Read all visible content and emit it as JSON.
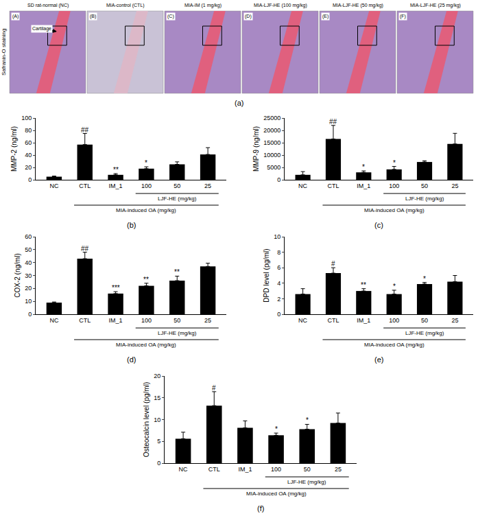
{
  "panel_a": {
    "label": "(a)",
    "side_label": "Safranin-O staining",
    "annotation": "Cartilage",
    "letters": [
      "(A)",
      "(B)",
      "(C)",
      "(D)",
      "(E)",
      "(F)"
    ],
    "headers": [
      "SD rat-normal (NC)",
      "MIA-control (CTL)",
      "MIA-IM (1 mg/kg)",
      "MIA-LJF-HE (100 mg/kg)",
      "MIA-LJF-HE (50 mg/kg)",
      "MIA-LJF-HE (25 mg/kg)"
    ]
  },
  "chart_data": [
    {
      "type": "bar",
      "panel": "(b)",
      "ylabel": "MMP-2 (ng/ml)",
      "categories": [
        "NC",
        "CTL",
        "IM_1",
        "100",
        "50",
        "25"
      ],
      "values": [
        5,
        57,
        8,
        18,
        25,
        41
      ],
      "errors": [
        1,
        18,
        2,
        3,
        4,
        11
      ],
      "significance": [
        null,
        "##",
        "**",
        "*",
        null,
        null
      ],
      "brackets": [
        {
          "label": "LJF-HE (mg/kg)",
          "span": [
            "100",
            "25"
          ]
        },
        {
          "label": "MIA-induced OA (mg/kg)",
          "span": [
            "CTL",
            "25"
          ]
        }
      ],
      "color": "#000000",
      "ylim": [
        0,
        100
      ],
      "yticks": [
        0,
        20,
        40,
        60,
        80,
        100
      ],
      "grid": false
    },
    {
      "type": "bar",
      "panel": "(c)",
      "ylabel": "MMP-9 (ng/ml)",
      "categories": [
        "NC",
        "CTL",
        "IM_1",
        "100",
        "50",
        "25"
      ],
      "values": [
        2000,
        16500,
        3000,
        4200,
        7200,
        14500
      ],
      "errors": [
        1300,
        5500,
        600,
        1200,
        500,
        4300
      ],
      "significance": [
        null,
        "##",
        "*",
        "*",
        null,
        null
      ],
      "brackets": [
        {
          "label": "LJF-HE (mg/kg)",
          "span": [
            "100",
            "25"
          ]
        },
        {
          "label": "MIA-induced OA (mg/kg)",
          "span": [
            "CTL",
            "25"
          ]
        }
      ],
      "color": "#000000",
      "ylim": [
        0,
        25000
      ],
      "yticks": [
        0,
        5000,
        10000,
        15000,
        20000,
        25000
      ],
      "grid": false
    },
    {
      "type": "bar",
      "panel": "(d)",
      "ylabel": "COX-2 (ng/ml)",
      "categories": [
        "NC",
        "CTL",
        "IM_1",
        "100",
        "50",
        "25"
      ],
      "values": [
        9,
        43,
        16,
        22,
        26,
        37
      ],
      "errors": [
        0.5,
        5,
        1.5,
        2,
        3.5,
        2.5
      ],
      "significance": [
        null,
        "##",
        "***",
        "**",
        "**",
        null
      ],
      "brackets": [
        {
          "label": "LJF-HE (mg/kg)",
          "span": [
            "100",
            "25"
          ]
        },
        {
          "label": "MIA-induced OA (mg/kg)",
          "span": [
            "CTL",
            "25"
          ]
        }
      ],
      "color": "#000000",
      "ylim": [
        0,
        60
      ],
      "yticks": [
        0,
        10,
        20,
        30,
        40,
        50,
        60
      ],
      "grid": false
    },
    {
      "type": "bar",
      "panel": "(e)",
      "ylabel": "DPD level (pg/ml)",
      "categories": [
        "NC",
        "CTL",
        "IM_1",
        "100",
        "50",
        "25"
      ],
      "values": [
        2.6,
        5.3,
        3.0,
        2.6,
        3.9,
        4.2
      ],
      "errors": [
        0.7,
        0.7,
        0.3,
        0.5,
        0.2,
        0.8
      ],
      "significance": [
        null,
        "#",
        "**",
        "*",
        "*",
        null
      ],
      "brackets": [
        {
          "label": "LJF-HE (mg/kg)",
          "span": [
            "100",
            "25"
          ]
        },
        {
          "label": "MIA-induced OA (mg/kg)",
          "span": [
            "CTL",
            "25"
          ]
        }
      ],
      "color": "#000000",
      "ylim": [
        0,
        10
      ],
      "yticks": [
        0,
        2,
        4,
        6,
        8,
        10
      ],
      "grid": false
    },
    {
      "type": "bar",
      "panel": "(f)",
      "ylabel": "Osteocalcin level (pg/ml)",
      "categories": [
        "NC",
        "CTL",
        "IM_1",
        "100",
        "50",
        "25"
      ],
      "values": [
        5.6,
        13.2,
        8.1,
        6.4,
        7.8,
        9.2
      ],
      "errors": [
        1.5,
        3.2,
        1.6,
        0.5,
        1.1,
        2.3
      ],
      "significance": [
        null,
        "#",
        null,
        "*",
        "*",
        null
      ],
      "brackets": [
        {
          "label": "LJF-HE (mg/kg)",
          "span": [
            "100",
            "25"
          ]
        },
        {
          "label": "MIA-induced OA (mg/kg)",
          "span": [
            "CTL",
            "25"
          ]
        }
      ],
      "color": "#000000",
      "ylim": [
        0,
        20
      ],
      "yticks": [
        0,
        5,
        10,
        15,
        20
      ],
      "grid": false
    }
  ]
}
